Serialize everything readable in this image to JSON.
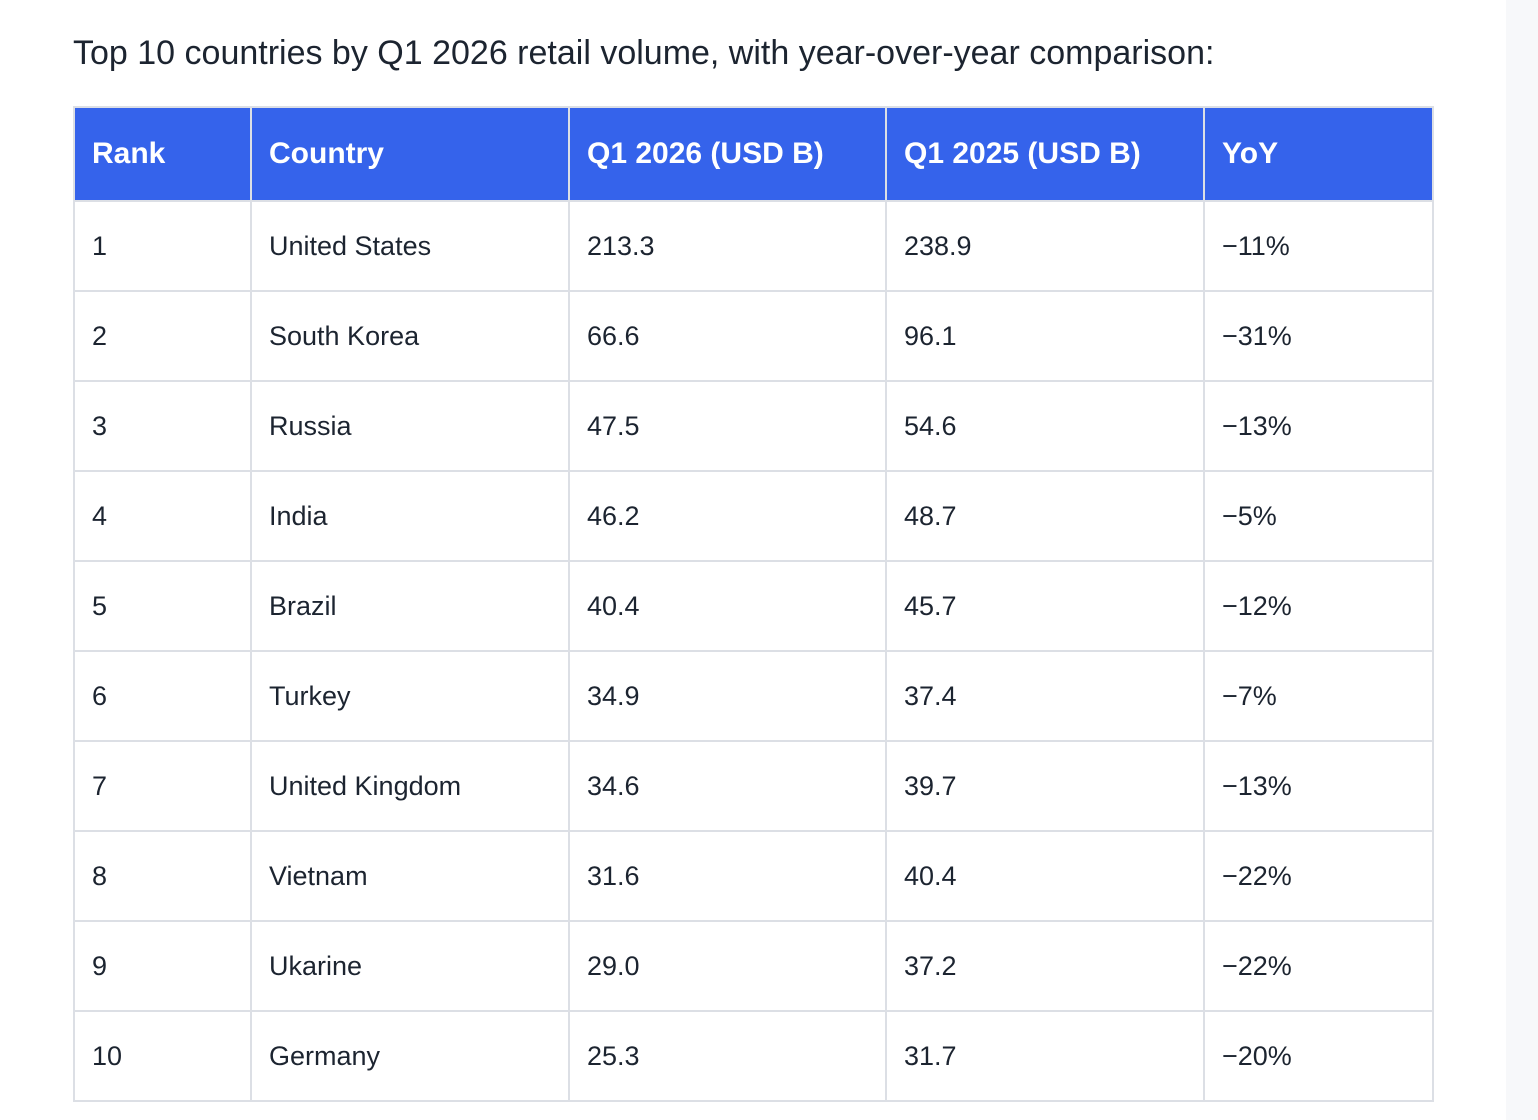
{
  "intro": "Top 10 countries by Q1 2026 retail volume, with year-over-year comparison:",
  "colors": {
    "header_background": "#3563eb",
    "header_text": "#ffffff",
    "border": "#dcdfe5"
  },
  "table": {
    "headers": [
      "Rank",
      "Country",
      "Q1 2026 (USD B)",
      "Q1 2025 (USD B)",
      "YoY"
    ],
    "rows": [
      [
        "1",
        "United States",
        "213.3",
        "238.9",
        "−11%"
      ],
      [
        "2",
        "South Korea",
        "66.6",
        "96.1",
        "−31%"
      ],
      [
        "3",
        "Russia",
        "47.5",
        "54.6",
        "−13%"
      ],
      [
        "4",
        "India",
        "46.2",
        "48.7",
        "−5%"
      ],
      [
        "5",
        "Brazil",
        "40.4",
        "45.7",
        "−12%"
      ],
      [
        "6",
        "Turkey",
        "34.9",
        "37.4",
        "−7%"
      ],
      [
        "7",
        "United Kingdom",
        "34.6",
        "39.7",
        "−13%"
      ],
      [
        "8",
        "Vietnam",
        "31.6",
        "40.4",
        "−22%"
      ],
      [
        "9",
        "Ukarine",
        "29.0",
        "37.2",
        "−22%"
      ],
      [
        "10",
        "Germany",
        "25.3",
        "31.7",
        "−20%"
      ]
    ]
  }
}
